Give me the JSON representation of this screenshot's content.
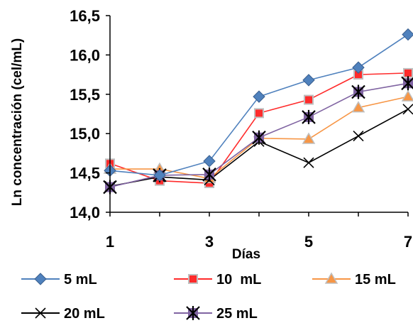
{
  "chart_data": {
    "type": "line",
    "xlabel": "Días",
    "ylabel": "Ln concentración (cel/mL)",
    "x": [
      1,
      2,
      3,
      4,
      5,
      6,
      7
    ],
    "x_ticks": [
      "1",
      "3",
      "5",
      "7"
    ],
    "y_ticks": [
      "14,0",
      "14,5",
      "15,0",
      "15,5",
      "16,0",
      "16,5"
    ],
    "ylim": [
      14.0,
      16.5
    ],
    "xlim": [
      1,
      7
    ],
    "grid": false,
    "legend_position": "bottom",
    "series": [
      {
        "name": "5 mL",
        "color": "#4f81bd",
        "marker": "diamond",
        "values": [
          14.53,
          14.47,
          14.65,
          15.47,
          15.68,
          15.84,
          16.26
        ]
      },
      {
        "name": "10  mL",
        "color": "#ff2b2b",
        "marker": "square",
        "values": [
          14.62,
          14.4,
          14.37,
          15.26,
          15.43,
          15.75,
          15.77
        ]
      },
      {
        "name": "15 mL",
        "color": "#f79646",
        "marker": "triangle",
        "values": [
          14.55,
          14.55,
          14.43,
          14.94,
          14.93,
          15.33,
          15.47
        ]
      },
      {
        "name": "20 mL",
        "color": "#000000",
        "marker": "x",
        "values": [
          14.33,
          14.45,
          14.41,
          14.9,
          14.63,
          14.97,
          15.31
        ]
      },
      {
        "name": "25 mL",
        "color": "#8064a2",
        "marker": "star",
        "values": [
          14.32,
          14.47,
          14.48,
          14.95,
          15.21,
          15.53,
          15.64
        ]
      }
    ]
  }
}
